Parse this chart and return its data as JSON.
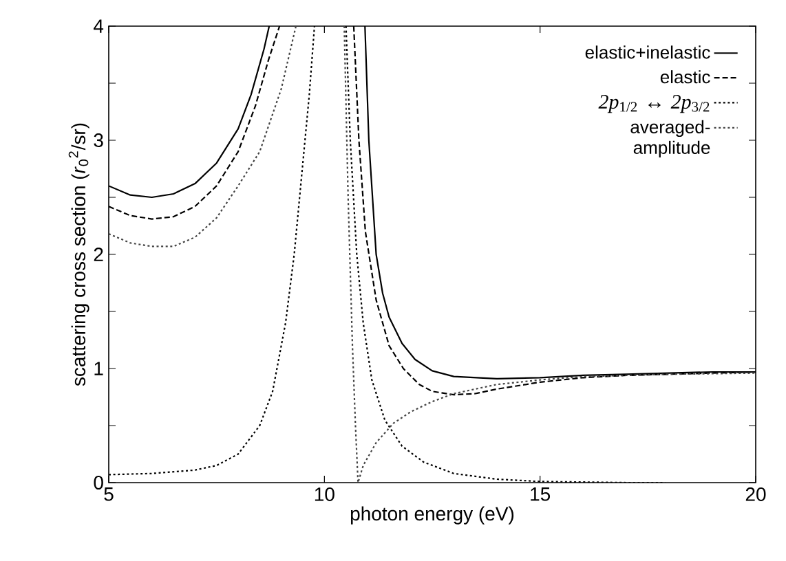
{
  "chart_data": {
    "type": "line",
    "xlabel": "photon energy (eV)",
    "ylabel": "scattering cross section (*r*$_{0}$$^{2}$/sr)",
    "xlim": [
      5,
      20
    ],
    "ylim": [
      0,
      4
    ],
    "xticks": [
      5,
      10,
      15,
      20
    ],
    "yticks": [
      0,
      {
        "value": 0.5,
        "label": null
      },
      1,
      {
        "value": 1.5,
        "label": null
      },
      2,
      {
        "value": 2.5,
        "label": null
      },
      3,
      {
        "value": 3.5,
        "label": null
      },
      4
    ],
    "legend": "top right",
    "grid": false,
    "series": [
      {
        "name": "elastic+inelastic",
        "color": "#000000",
        "line_style": "solid",
        "x": [
          5,
          5.5,
          6,
          6.5,
          7,
          7.5,
          8,
          8.3,
          8.6,
          8.72,
          null,
          10.94,
          11.03,
          11.2,
          11.35,
          11.5,
          11.8,
          12.1,
          12.5,
          13,
          14,
          15,
          16,
          17,
          18,
          19,
          20
        ],
        "values": [
          2.6,
          2.52,
          2.5,
          2.53,
          2.62,
          2.8,
          3.1,
          3.4,
          3.8,
          4.0,
          null,
          4.0,
          3.0,
          2.0,
          1.66,
          1.45,
          1.22,
          1.08,
          0.98,
          0.93,
          0.91,
          0.92,
          0.94,
          0.95,
          0.96,
          0.97,
          0.97
        ]
      },
      {
        "name": "elastic",
        "color": "#000000",
        "line_style": "dashed",
        "x": [
          5,
          5.5,
          6,
          6.5,
          7,
          7.5,
          8,
          8.4,
          8.7,
          8.96,
          null,
          10.68,
          10.8,
          10.95,
          11.2,
          11.5,
          11.83,
          12.2,
          12.5,
          13,
          13.5,
          14,
          15,
          16,
          17,
          18,
          20
        ],
        "values": [
          2.42,
          2.34,
          2.31,
          2.33,
          2.42,
          2.6,
          2.9,
          3.3,
          3.7,
          4.0,
          null,
          4.0,
          3.0,
          2.2,
          1.6,
          1.2,
          1.0,
          0.86,
          0.8,
          0.77,
          0.78,
          0.82,
          0.88,
          0.92,
          0.94,
          0.95,
          0.97
        ]
      },
      {
        "name": "*2p*$_{1/2}$ ↔ *2p*$_{3/2}$",
        "color": "#000000",
        "line_style": "dotted",
        "x": [
          5,
          6,
          7,
          7.5,
          8,
          8.5,
          8.8,
          9.1,
          9.3,
          9.5,
          9.65,
          9.77,
          null,
          10.5,
          10.6,
          10.75,
          10.9,
          11.1,
          11.4,
          11.8,
          12.3,
          13,
          14,
          15,
          17,
          17.9
        ],
        "values": [
          0.07,
          0.08,
          0.11,
          0.15,
          0.25,
          0.5,
          0.8,
          1.4,
          2.0,
          2.8,
          3.4,
          4.0,
          null,
          4.0,
          3.0,
          2.0,
          1.4,
          0.9,
          0.55,
          0.32,
          0.18,
          0.08,
          0.03,
          0.01,
          0.0,
          0.0
        ]
      },
      {
        "name": "averaged-amplitude",
        "color": "#444444",
        "line_style": "dotted",
        "x": [
          5,
          5.5,
          6,
          6.5,
          7,
          7.5,
          8,
          8.5,
          9,
          9.34,
          null,
          10.46,
          10.55,
          10.65,
          10.72,
          10.78,
          10.9,
          11.2,
          11.6,
          12,
          12.5,
          13,
          14,
          15,
          16,
          18,
          20
        ],
        "values": [
          2.18,
          2.1,
          2.07,
          2.07,
          2.15,
          2.32,
          2.6,
          2.9,
          3.45,
          4.0,
          null,
          4.0,
          2.5,
          1.2,
          0.5,
          0.0,
          0.15,
          0.35,
          0.52,
          0.62,
          0.71,
          0.78,
          0.86,
          0.9,
          0.93,
          0.95,
          0.96
        ]
      }
    ]
  }
}
